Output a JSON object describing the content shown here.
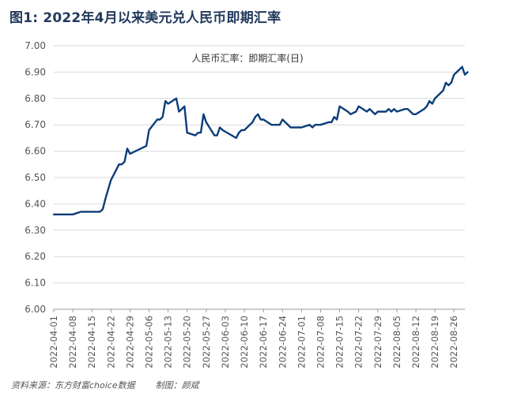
{
  "figure": {
    "title": "图1: 2022年4月以来美元兑人民币即期汇率",
    "source": "资料来源：东方财富choice数据",
    "author": "制图：颜斌"
  },
  "colors": {
    "line": "#0b3d7a",
    "grid": "#d9d9d9",
    "axis_text": "#555555",
    "title": "#233a5c"
  },
  "chart_data": {
    "type": "line",
    "title": "",
    "xlabel": "",
    "ylabel": "",
    "ylim": [
      6.0,
      7.0
    ],
    "yticks": [
      "6.00",
      "6.10",
      "6.20",
      "6.30",
      "6.40",
      "6.50",
      "6.60",
      "6.70",
      "6.80",
      "6.90",
      "7.00"
    ],
    "grid": "horizontal",
    "legend": {
      "label": "人民币汇率：即期汇率(日)",
      "placement": "top-center"
    },
    "xticks": [
      "2022-04-01",
      "2022-04-08",
      "2022-04-15",
      "2022-04-22",
      "2022-04-29",
      "2022-05-06",
      "2022-05-13",
      "2022-05-20",
      "2022-05-27",
      "2022-06-03",
      "2022-06-10",
      "2022-06-17",
      "2022-06-24",
      "2022-07-01",
      "2022-07-08",
      "2022-07-15",
      "2022-07-22",
      "2022-07-29",
      "2022-08-05",
      "2022-08-12",
      "2022-08-19",
      "2022-08-26"
    ],
    "x_end": "2022-08-30",
    "series": [
      {
        "name": "人民币汇率：即期汇率(日)",
        "points": [
          [
            "2022-04-01",
            6.36
          ],
          [
            "2022-04-08",
            6.36
          ],
          [
            "2022-04-11",
            6.37
          ],
          [
            "2022-04-18",
            6.37
          ],
          [
            "2022-04-19",
            6.38
          ],
          [
            "2022-04-20",
            6.42
          ],
          [
            "2022-04-22",
            6.49
          ],
          [
            "2022-04-25",
            6.55
          ],
          [
            "2022-04-26",
            6.55
          ],
          [
            "2022-04-27",
            6.56
          ],
          [
            "2022-04-28",
            6.61
          ],
          [
            "2022-04-29",
            6.59
          ],
          [
            "2022-05-05",
            6.62
          ],
          [
            "2022-05-06",
            6.68
          ],
          [
            "2022-05-09",
            6.72
          ],
          [
            "2022-05-10",
            6.72
          ],
          [
            "2022-05-11",
            6.73
          ],
          [
            "2022-05-12",
            6.79
          ],
          [
            "2022-05-13",
            6.78
          ],
          [
            "2022-05-16",
            6.8
          ],
          [
            "2022-05-17",
            6.75
          ],
          [
            "2022-05-18",
            6.76
          ],
          [
            "2022-05-19",
            6.77
          ],
          [
            "2022-05-20",
            6.67
          ],
          [
            "2022-05-23",
            6.66
          ],
          [
            "2022-05-24",
            6.67
          ],
          [
            "2022-05-25",
            6.67
          ],
          [
            "2022-05-26",
            6.74
          ],
          [
            "2022-05-27",
            6.71
          ],
          [
            "2022-05-30",
            6.66
          ],
          [
            "2022-05-31",
            6.66
          ],
          [
            "2022-06-01",
            6.69
          ],
          [
            "2022-06-02",
            6.68
          ],
          [
            "2022-06-07",
            6.65
          ],
          [
            "2022-06-08",
            6.67
          ],
          [
            "2022-06-09",
            6.68
          ],
          [
            "2022-06-10",
            6.68
          ],
          [
            "2022-06-13",
            6.71
          ],
          [
            "2022-06-14",
            6.73
          ],
          [
            "2022-06-15",
            6.74
          ],
          [
            "2022-06-16",
            6.72
          ],
          [
            "2022-06-17",
            6.72
          ],
          [
            "2022-06-20",
            6.7
          ],
          [
            "2022-06-21",
            6.7
          ],
          [
            "2022-06-23",
            6.7
          ],
          [
            "2022-06-24",
            6.72
          ],
          [
            "2022-06-27",
            6.69
          ],
          [
            "2022-06-28",
            6.69
          ],
          [
            "2022-07-01",
            6.69
          ],
          [
            "2022-07-04",
            6.7
          ],
          [
            "2022-07-05",
            6.69
          ],
          [
            "2022-07-06",
            6.7
          ],
          [
            "2022-07-08",
            6.7
          ],
          [
            "2022-07-11",
            6.71
          ],
          [
            "2022-07-12",
            6.71
          ],
          [
            "2022-07-13",
            6.73
          ],
          [
            "2022-07-14",
            6.72
          ],
          [
            "2022-07-15",
            6.77
          ],
          [
            "2022-07-18",
            6.75
          ],
          [
            "2022-07-19",
            6.74
          ],
          [
            "2022-07-21",
            6.75
          ],
          [
            "2022-07-22",
            6.77
          ],
          [
            "2022-07-25",
            6.75
          ],
          [
            "2022-07-26",
            6.76
          ],
          [
            "2022-07-27",
            6.75
          ],
          [
            "2022-07-28",
            6.74
          ],
          [
            "2022-07-29",
            6.75
          ],
          [
            "2022-08-01",
            6.75
          ],
          [
            "2022-08-02",
            6.76
          ],
          [
            "2022-08-03",
            6.75
          ],
          [
            "2022-08-04",
            6.76
          ],
          [
            "2022-08-05",
            6.75
          ],
          [
            "2022-08-08",
            6.76
          ],
          [
            "2022-08-09",
            6.76
          ],
          [
            "2022-08-10",
            6.75
          ],
          [
            "2022-08-11",
            6.74
          ],
          [
            "2022-08-12",
            6.74
          ],
          [
            "2022-08-15",
            6.76
          ],
          [
            "2022-08-16",
            6.77
          ],
          [
            "2022-08-17",
            6.79
          ],
          [
            "2022-08-18",
            6.78
          ],
          [
            "2022-08-19",
            6.8
          ],
          [
            "2022-08-22",
            6.83
          ],
          [
            "2022-08-23",
            6.86
          ],
          [
            "2022-08-24",
            6.85
          ],
          [
            "2022-08-25",
            6.86
          ],
          [
            "2022-08-26",
            6.89
          ],
          [
            "2022-08-29",
            6.92
          ],
          [
            "2022-08-30",
            6.89
          ],
          [
            "2022-08-31",
            6.9
          ]
        ]
      }
    ]
  }
}
